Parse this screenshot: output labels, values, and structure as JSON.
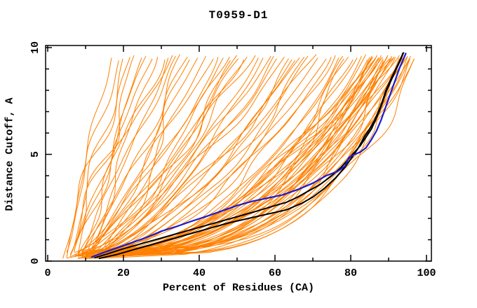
{
  "title": "T0959-D1",
  "chart_data": {
    "type": "line",
    "title": "T0959-D1",
    "xlabel": "Percent of Residues (CA)",
    "ylabel": "Distance Cutoff, A",
    "xlim": [
      0,
      100
    ],
    "ylim": [
      0,
      10
    ],
    "x_major_ticks": [
      0,
      20,
      40,
      60,
      80,
      100
    ],
    "x_minor_ticks": [
      10,
      30,
      50,
      70,
      90
    ],
    "y_major_ticks": [
      0,
      5,
      10
    ],
    "y_minor_ticks": [
      1,
      2,
      3,
      4,
      6,
      7,
      8,
      9
    ],
    "grid": false,
    "legend": "none",
    "frame": "box-with-inward-ticks",
    "colors": {
      "ensemble": "#ff8000",
      "highlight_blue": "#1c1ccd",
      "highlight_black": "#000000",
      "frame": "#000000",
      "background": "#ffffff"
    },
    "series": [
      {
        "name": "highlighted-model-blue",
        "color_key": "highlight_blue",
        "width": 2.2,
        "points": [
          [
            11.5,
            0.18
          ],
          [
            14,
            0.35
          ],
          [
            18,
            0.6
          ],
          [
            22,
            0.85
          ],
          [
            26,
            1.1
          ],
          [
            30,
            1.4
          ],
          [
            34,
            1.62
          ],
          [
            38,
            1.87
          ],
          [
            42,
            2.1
          ],
          [
            46,
            2.35
          ],
          [
            50,
            2.6
          ],
          [
            54,
            2.8
          ],
          [
            58,
            2.95
          ],
          [
            62,
            3.1
          ],
          [
            66,
            3.35
          ],
          [
            70,
            3.65
          ],
          [
            73.5,
            4.0
          ],
          [
            76.5,
            4.2
          ],
          [
            78.5,
            4.45
          ],
          [
            79.5,
            4.85
          ],
          [
            81,
            5.0
          ],
          [
            82.5,
            5.1
          ],
          [
            84,
            5.3
          ],
          [
            85.5,
            5.7
          ],
          [
            86.8,
            6.1
          ],
          [
            88,
            6.6
          ],
          [
            89,
            7.1
          ],
          [
            89.8,
            7.5
          ],
          [
            90.8,
            8.0
          ],
          [
            92,
            8.6
          ],
          [
            93,
            9.1
          ],
          [
            94,
            9.5
          ],
          [
            94.6,
            9.75
          ]
        ]
      },
      {
        "name": "highlighted-model-black-1",
        "color_key": "highlight_black",
        "width": 2,
        "points": [
          [
            12.3,
            0.15
          ],
          [
            16,
            0.35
          ],
          [
            20,
            0.58
          ],
          [
            25,
            0.83
          ],
          [
            30,
            1.08
          ],
          [
            35,
            1.33
          ],
          [
            40,
            1.58
          ],
          [
            45,
            1.83
          ],
          [
            50,
            2.08
          ],
          [
            55,
            2.33
          ],
          [
            60,
            2.6
          ],
          [
            63,
            2.75
          ],
          [
            66,
            3.0
          ],
          [
            69,
            3.3
          ],
          [
            72,
            3.6
          ],
          [
            75,
            4.0
          ],
          [
            77.5,
            4.4
          ],
          [
            79.5,
            4.8
          ],
          [
            81,
            5.1
          ],
          [
            82.5,
            5.4
          ],
          [
            84,
            5.8
          ],
          [
            85.5,
            6.2
          ],
          [
            86.5,
            6.6
          ],
          [
            87.5,
            7.0
          ],
          [
            88.3,
            7.4
          ],
          [
            89.5,
            8.0
          ],
          [
            91,
            8.6
          ],
          [
            92.3,
            9.1
          ],
          [
            93.3,
            9.5
          ],
          [
            93.8,
            9.75
          ]
        ]
      },
      {
        "name": "highlighted-model-black-2",
        "color_key": "highlight_black",
        "width": 2,
        "points": [
          [
            13.5,
            0.12
          ],
          [
            18,
            0.3
          ],
          [
            23,
            0.55
          ],
          [
            28,
            0.8
          ],
          [
            33,
            1.05
          ],
          [
            38,
            1.3
          ],
          [
            43,
            1.55
          ],
          [
            48,
            1.8
          ],
          [
            53,
            2.0
          ],
          [
            58,
            2.2
          ],
          [
            63,
            2.4
          ],
          [
            67,
            2.7
          ],
          [
            70,
            3.0
          ],
          [
            73,
            3.4
          ],
          [
            76,
            3.9
          ],
          [
            78.5,
            4.4
          ],
          [
            80.5,
            4.9
          ],
          [
            82,
            5.3
          ],
          [
            83.5,
            5.8
          ],
          [
            85,
            6.2
          ],
          [
            86.3,
            6.6
          ],
          [
            87.3,
            7.0
          ],
          [
            88.2,
            7.4
          ],
          [
            89.3,
            8.0
          ],
          [
            90.8,
            8.6
          ],
          [
            92.2,
            9.1
          ],
          [
            93.2,
            9.5
          ],
          [
            94.0,
            9.78
          ]
        ]
      }
    ],
    "ensemble": {
      "name": "model-ensemble-orange",
      "color_key": "ensemble",
      "width": 1,
      "description": "each entry: [x_at_bottom_pct, x_at_top_pct, shape_exponent]",
      "y_start": 0.15,
      "y_end": 9.7,
      "curves": [
        [
          4,
          17,
          1.0
        ],
        [
          5,
          19,
          1.1
        ],
        [
          6,
          20,
          0.95
        ],
        [
          5,
          22,
          1.2
        ],
        [
          7,
          23,
          1.0
        ],
        [
          6,
          25,
          0.9
        ],
        [
          8,
          26,
          1.15
        ],
        [
          7,
          28,
          1.0
        ],
        [
          9,
          29,
          0.85
        ],
        [
          8,
          31,
          1.1
        ],
        [
          10,
          32,
          0.95
        ],
        [
          9,
          34,
          1.05
        ],
        [
          11,
          35,
          0.9
        ],
        [
          10,
          37,
          1.0
        ],
        [
          12,
          38,
          0.85
        ],
        [
          11,
          40,
          0.95
        ],
        [
          13,
          42,
          0.9
        ],
        [
          12,
          44,
          1.0
        ],
        [
          14,
          45,
          0.8
        ],
        [
          6,
          33,
          1.3
        ],
        [
          5,
          47,
          0.75
        ],
        [
          7,
          49,
          0.7
        ],
        [
          9,
          51,
          0.8
        ],
        [
          6,
          53,
          0.65
        ],
        [
          8,
          55,
          0.75
        ],
        [
          10,
          57,
          0.6
        ],
        [
          7,
          59,
          0.7
        ],
        [
          9,
          61,
          0.65
        ],
        [
          11,
          63,
          0.75
        ],
        [
          8,
          65,
          0.6
        ],
        [
          10,
          67,
          0.7
        ],
        [
          12,
          69,
          0.55
        ],
        [
          9,
          71,
          0.65
        ],
        [
          13,
          48,
          0.85
        ],
        [
          14,
          52,
          0.8
        ],
        [
          12,
          56,
          0.72
        ],
        [
          13,
          60,
          0.68
        ],
        [
          15,
          64,
          0.62
        ],
        [
          14,
          68,
          0.58
        ],
        [
          11,
          50,
          0.78
        ],
        [
          10,
          72,
          0.55
        ],
        [
          12,
          66,
          0.6
        ],
        [
          7,
          74,
          0.5
        ],
        [
          8,
          75,
          0.45
        ],
        [
          9,
          76,
          0.5
        ],
        [
          10,
          77,
          0.42
        ],
        [
          11,
          78,
          0.48
        ],
        [
          12,
          79,
          0.4
        ],
        [
          13,
          80,
          0.45
        ],
        [
          14,
          81,
          0.38
        ],
        [
          8,
          82,
          0.44
        ],
        [
          9,
          83,
          0.36
        ],
        [
          10,
          84,
          0.42
        ],
        [
          11,
          85,
          0.35
        ],
        [
          12,
          85,
          0.45
        ],
        [
          13,
          86,
          0.4
        ],
        [
          14,
          86,
          0.33
        ],
        [
          15,
          87,
          0.38
        ],
        [
          8,
          87,
          0.45
        ],
        [
          9,
          88,
          0.35
        ],
        [
          10,
          88,
          0.42
        ],
        [
          11,
          89,
          0.32
        ],
        [
          12,
          89,
          0.4
        ],
        [
          13,
          90,
          0.36
        ],
        [
          14,
          90,
          0.3
        ],
        [
          15,
          91,
          0.38
        ],
        [
          9,
          91,
          0.33
        ],
        [
          10,
          92,
          0.4
        ],
        [
          11,
          92,
          0.3
        ],
        [
          12,
          93,
          0.36
        ],
        [
          13,
          93,
          0.32
        ],
        [
          14,
          94,
          0.38
        ],
        [
          10,
          94,
          0.3
        ],
        [
          11,
          95,
          0.34
        ],
        [
          12,
          95,
          0.29
        ],
        [
          13,
          96,
          0.33
        ],
        [
          15,
          96,
          0.28
        ],
        [
          16,
          97,
          0.32
        ],
        [
          9,
          86,
          0.5
        ],
        [
          10,
          87,
          0.52
        ],
        [
          11,
          88,
          0.48
        ],
        [
          12,
          90,
          0.5
        ],
        [
          13,
          91,
          0.46
        ],
        [
          14,
          92,
          0.5
        ],
        [
          15,
          93,
          0.44
        ],
        [
          16,
          94,
          0.48
        ],
        [
          9,
          95,
          0.27
        ],
        [
          10,
          96,
          0.26
        ],
        [
          16,
          89,
          0.55
        ],
        [
          8,
          97,
          0.25
        ]
      ]
    }
  }
}
